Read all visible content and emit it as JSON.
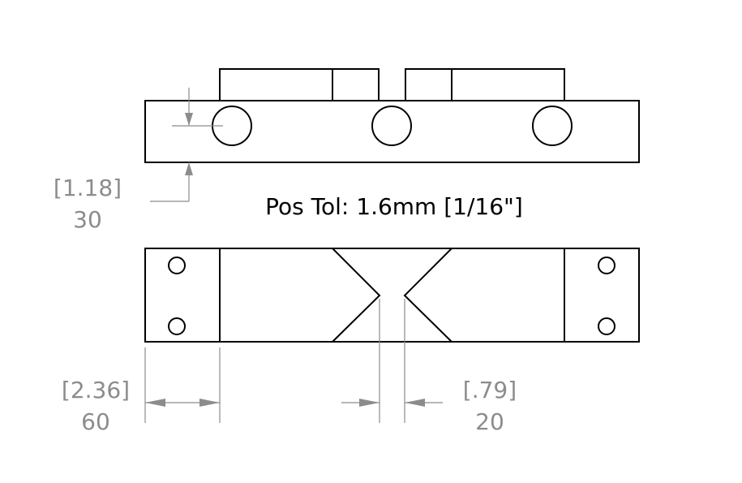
{
  "note": "Pos Tol: 1.6mm [1/16\"]",
  "dimensions": {
    "height": {
      "inch": "[1.18]",
      "mm": "30"
    },
    "left_block": {
      "inch": "[2.36]",
      "mm": "60"
    },
    "gap": {
      "inch": "[.79]",
      "mm": "20"
    }
  },
  "colors": {
    "dimension": "#8c8c8c",
    "geometry": "#000000"
  }
}
